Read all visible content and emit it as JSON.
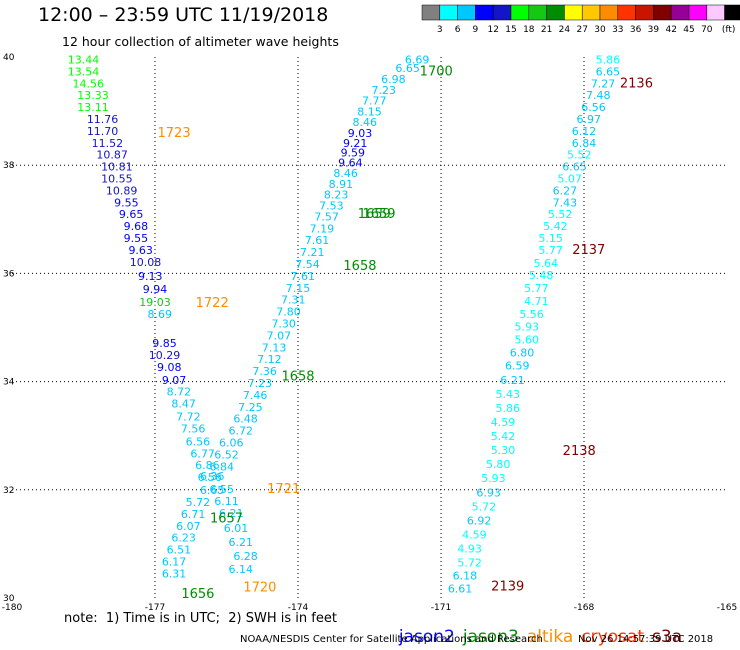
{
  "title": "12:00 – 23:59 UTC 11/19/2018",
  "subtitle": "12 hour collection of altimeter wave heights",
  "colorbar": {
    "ticks": [
      "3",
      "6",
      "9",
      "12",
      "15",
      "18",
      "21",
      "24",
      "27",
      "30",
      "33",
      "36",
      "39",
      "42",
      "45",
      "70"
    ],
    "unit": "(ft)",
    "colors": [
      "#808080",
      "#00ffff",
      "#00c8ff",
      "#0000ff",
      "#1414c8",
      "#00ff00",
      "#14c814",
      "#008c00",
      "#ffff00",
      "#ffc800",
      "#ff8c00",
      "#ff3200",
      "#c81400",
      "#800000",
      "#960096",
      "#ff00ff",
      "#ffc8ff",
      "#000000"
    ]
  },
  "note": "note:  1) Time is in UTC;  2) SWH is in feet",
  "satellites": [
    {
      "name": "jason2",
      "color": "#0000ff"
    },
    {
      "name": "jason3",
      "color": "#008c00"
    },
    {
      "name": "altika",
      "color": "#ff8c00"
    },
    {
      "name": "cryosat",
      "color": "#ff3200"
    },
    {
      "name": "s3a",
      "color": "#800000"
    }
  ],
  "credit": "NOAA/NESDIS Center for Satellite Applications and Research",
  "stamp": "Nov 26 14:57:39 UTC 2018",
  "chart_data": {
    "type": "scatter",
    "title": "12:00 – 23:59 UTC 11/19/2018",
    "xlabel": "",
    "ylabel": "",
    "xlim": [
      -180,
      -165
    ],
    "ylim": [
      30,
      40
    ],
    "x_ticks": [
      "-180",
      "-177",
      "-174",
      "-171",
      "-168",
      "-165"
    ],
    "y_ticks": [
      "30",
      "32",
      "34",
      "36",
      "38",
      "40"
    ],
    "grid": true,
    "colors": {
      "c3": "#00ffff",
      "c6": "#00c8ff",
      "c9": "#0000ff",
      "c12": "#1414c8",
      "c15": "#00ff00",
      "c18": "#14c814",
      "tj3": "#008c00",
      "tal": "#ff8c00",
      "ts3": "#800000"
    },
    "points": [
      {
        "x": -178.5,
        "y": 39.88,
        "label": "13.44",
        "c": "c15"
      },
      {
        "x": -178.5,
        "y": 39.66,
        "label": "13.54",
        "c": "c15"
      },
      {
        "x": -178.4,
        "y": 39.44,
        "label": "14.56",
        "c": "c15"
      },
      {
        "x": -178.3,
        "y": 39.22,
        "label": "13.33",
        "c": "c15"
      },
      {
        "x": -178.3,
        "y": 39.0,
        "label": "13.11",
        "c": "c15"
      },
      {
        "x": -178.1,
        "y": 38.78,
        "label": "11.76",
        "c": "c12"
      },
      {
        "x": -178.1,
        "y": 38.56,
        "label": "11.70",
        "c": "c12"
      },
      {
        "x": -178.0,
        "y": 38.34,
        "label": "11.52",
        "c": "c12"
      },
      {
        "x": -177.9,
        "y": 38.12,
        "label": "10.87",
        "c": "c12"
      },
      {
        "x": -177.8,
        "y": 37.9,
        "label": "10.81",
        "c": "c12"
      },
      {
        "x": -177.8,
        "y": 37.68,
        "label": "10.55",
        "c": "c12"
      },
      {
        "x": -177.7,
        "y": 37.46,
        "label": "10.89",
        "c": "c12"
      },
      {
        "x": -177.6,
        "y": 37.24,
        "label": "9.55",
        "c": "c9"
      },
      {
        "x": -177.5,
        "y": 37.02,
        "label": "9.65",
        "c": "c9"
      },
      {
        "x": -177.4,
        "y": 36.8,
        "label": "9.68",
        "c": "c9"
      },
      {
        "x": -177.4,
        "y": 36.58,
        "label": "9.55",
        "c": "c9"
      },
      {
        "x": -177.3,
        "y": 36.36,
        "label": "9.63",
        "c": "c9"
      },
      {
        "x": -177.2,
        "y": 36.14,
        "label": "10.08",
        "c": "c12"
      },
      {
        "x": -177.1,
        "y": 35.88,
        "label": "9.13",
        "c": "c9"
      },
      {
        "x": -177.0,
        "y": 35.64,
        "label": "9.94",
        "c": "c9"
      },
      {
        "x": -177.0,
        "y": 35.4,
        "label": "19.03",
        "c": "c18"
      },
      {
        "x": -176.9,
        "y": 35.18,
        "label": "8.69",
        "c": "c6"
      },
      {
        "x": -176.8,
        "y": 34.64,
        "label": "9.85",
        "c": "c9"
      },
      {
        "x": -176.8,
        "y": 34.42,
        "label": "10.29",
        "c": "c12"
      },
      {
        "x": -176.7,
        "y": 34.2,
        "label": "9.08",
        "c": "c9"
      },
      {
        "x": -176.6,
        "y": 33.96,
        "label": "9.07",
        "c": "c9"
      },
      {
        "x": -176.5,
        "y": 33.74,
        "label": "8.72",
        "c": "c6"
      },
      {
        "x": -176.4,
        "y": 33.52,
        "label": "8.47",
        "c": "c6"
      },
      {
        "x": -176.3,
        "y": 33.28,
        "label": "7.72",
        "c": "c6"
      },
      {
        "x": -176.2,
        "y": 33.06,
        "label": "7.56",
        "c": "c6"
      },
      {
        "x": -176.1,
        "y": 32.82,
        "label": "6.56",
        "c": "c6"
      },
      {
        "x": -176.0,
        "y": 32.6,
        "label": "6.77",
        "c": "c6"
      },
      {
        "x": -175.9,
        "y": 32.38,
        "label": "6.86",
        "c": "c6"
      },
      {
        "x": -175.85,
        "y": 32.16,
        "label": "6.56",
        "c": "c6"
      },
      {
        "x": -175.8,
        "y": 31.92,
        "label": "6.65",
        "c": "c6"
      },
      {
        "x": -176.1,
        "y": 31.7,
        "label": "5.72",
        "c": "c6"
      },
      {
        "x": -176.2,
        "y": 31.48,
        "label": "6.71",
        "c": "c6"
      },
      {
        "x": -176.3,
        "y": 31.26,
        "label": "6.07",
        "c": "c6"
      },
      {
        "x": -176.4,
        "y": 31.04,
        "label": "6.23",
        "c": "c6"
      },
      {
        "x": -176.5,
        "y": 30.82,
        "label": "6.51",
        "c": "c6"
      },
      {
        "x": -176.6,
        "y": 30.6,
        "label": "6.17",
        "c": "c6"
      },
      {
        "x": -176.6,
        "y": 30.38,
        "label": "6.31",
        "c": "c6"
      },
      {
        "x": -175.8,
        "y": 32.18,
        "label": "6.36",
        "c": "c6"
      },
      {
        "x": -175.6,
        "y": 31.94,
        "label": "6.55",
        "c": "c6"
      },
      {
        "x": -175.5,
        "y": 31.72,
        "label": "6.11",
        "c": "c6"
      },
      {
        "x": -175.4,
        "y": 31.5,
        "label": "6.21",
        "c": "c6"
      },
      {
        "x": -175.3,
        "y": 31.22,
        "label": "6.01",
        "c": "c6"
      },
      {
        "x": -175.2,
        "y": 30.96,
        "label": "6.21",
        "c": "c6"
      },
      {
        "x": -175.1,
        "y": 30.7,
        "label": "6.28",
        "c": "c6"
      },
      {
        "x": -175.2,
        "y": 30.46,
        "label": "6.14",
        "c": "c6"
      },
      {
        "x": -175.6,
        "y": 32.36,
        "label": "6.84",
        "c": "c6"
      },
      {
        "x": -175.5,
        "y": 32.58,
        "label": "6.52",
        "c": "c6"
      },
      {
        "x": -175.4,
        "y": 32.8,
        "label": "6.06",
        "c": "c6"
      },
      {
        "x": -175.2,
        "y": 33.02,
        "label": "6.72",
        "c": "c6"
      },
      {
        "x": -175.1,
        "y": 33.24,
        "label": "6.48",
        "c": "c6"
      },
      {
        "x": -175.0,
        "y": 33.46,
        "label": "7.25",
        "c": "c6"
      },
      {
        "x": -174.9,
        "y": 33.68,
        "label": "7.46",
        "c": "c6"
      },
      {
        "x": -174.8,
        "y": 33.9,
        "label": "7.23",
        "c": "c6"
      },
      {
        "x": -174.7,
        "y": 34.12,
        "label": "7.36",
        "c": "c6"
      },
      {
        "x": -174.6,
        "y": 34.34,
        "label": "7.12",
        "c": "c6"
      },
      {
        "x": -174.5,
        "y": 34.56,
        "label": "7.13",
        "c": "c6"
      },
      {
        "x": -174.4,
        "y": 34.78,
        "label": "7.07",
        "c": "c6"
      },
      {
        "x": -174.3,
        "y": 35.0,
        "label": "7.30",
        "c": "c6"
      },
      {
        "x": -174.2,
        "y": 35.22,
        "label": "7.80",
        "c": "c6"
      },
      {
        "x": -174.1,
        "y": 35.44,
        "label": "7.31",
        "c": "c6"
      },
      {
        "x": -174.0,
        "y": 35.66,
        "label": "7.15",
        "c": "c6"
      },
      {
        "x": -173.9,
        "y": 35.88,
        "label": "7.61",
        "c": "c6"
      },
      {
        "x": -173.8,
        "y": 36.1,
        "label": "7.54",
        "c": "c6"
      },
      {
        "x": -173.7,
        "y": 36.32,
        "label": "7.21",
        "c": "c6"
      },
      {
        "x": -173.6,
        "y": 36.54,
        "label": "7.61",
        "c": "c6"
      },
      {
        "x": -173.5,
        "y": 36.76,
        "label": "7.19",
        "c": "c6"
      },
      {
        "x": -173.4,
        "y": 36.98,
        "label": "7.57",
        "c": "c6"
      },
      {
        "x": -173.3,
        "y": 37.18,
        "label": "7.53",
        "c": "c6"
      },
      {
        "x": -173.2,
        "y": 37.38,
        "label": "8.23",
        "c": "c6"
      },
      {
        "x": -173.1,
        "y": 37.58,
        "label": "8.91",
        "c": "c6"
      },
      {
        "x": -173.0,
        "y": 37.78,
        "label": "8.46",
        "c": "c6"
      },
      {
        "x": -172.9,
        "y": 37.98,
        "label": "9.64",
        "c": "c9"
      },
      {
        "x": -172.85,
        "y": 38.16,
        "label": "9.59",
        "c": "c9"
      },
      {
        "x": -172.8,
        "y": 38.34,
        "label": "9.21",
        "c": "c9"
      },
      {
        "x": -172.7,
        "y": 38.52,
        "label": "9.03",
        "c": "c9"
      },
      {
        "x": -172.6,
        "y": 38.72,
        "label": "8.46",
        "c": "c6"
      },
      {
        "x": -172.5,
        "y": 38.92,
        "label": "8.15",
        "c": "c6"
      },
      {
        "x": -172.4,
        "y": 39.12,
        "label": "7.77",
        "c": "c6"
      },
      {
        "x": -172.2,
        "y": 39.32,
        "label": "7.23",
        "c": "c6"
      },
      {
        "x": -172.0,
        "y": 39.52,
        "label": "6.98",
        "c": "c6"
      },
      {
        "x": -171.7,
        "y": 39.72,
        "label": "6.65",
        "c": "c6"
      },
      {
        "x": -171.5,
        "y": 39.88,
        "label": "6.69",
        "c": "c6"
      },
      {
        "x": -167.5,
        "y": 39.88,
        "label": "5.86",
        "c": "c3"
      },
      {
        "x": -167.5,
        "y": 39.66,
        "label": "6.65",
        "c": "c6"
      },
      {
        "x": -167.6,
        "y": 39.44,
        "label": "7.27",
        "c": "c6"
      },
      {
        "x": -167.7,
        "y": 39.22,
        "label": "7.48",
        "c": "c6"
      },
      {
        "x": -167.8,
        "y": 39.0,
        "label": "6.56",
        "c": "c6"
      },
      {
        "x": -167.9,
        "y": 38.78,
        "label": "6.97",
        "c": "c6"
      },
      {
        "x": -168.0,
        "y": 38.56,
        "label": "6.12",
        "c": "c6"
      },
      {
        "x": -168.0,
        "y": 38.34,
        "label": "6.84",
        "c": "c6"
      },
      {
        "x": -168.1,
        "y": 38.12,
        "label": "5.52",
        "c": "c3"
      },
      {
        "x": -168.2,
        "y": 37.9,
        "label": "6.65",
        "c": "c6"
      },
      {
        "x": -168.3,
        "y": 37.68,
        "label": "5.07",
        "c": "c3"
      },
      {
        "x": -168.4,
        "y": 37.46,
        "label": "6.27",
        "c": "c6"
      },
      {
        "x": -168.4,
        "y": 37.24,
        "label": "7.43",
        "c": "c6"
      },
      {
        "x": -168.5,
        "y": 37.02,
        "label": "5.52",
        "c": "c3"
      },
      {
        "x": -168.6,
        "y": 36.8,
        "label": "5.42",
        "c": "c3"
      },
      {
        "x": -168.7,
        "y": 36.58,
        "label": "5.15",
        "c": "c3"
      },
      {
        "x": -168.7,
        "y": 36.36,
        "label": "5.77",
        "c": "c3"
      },
      {
        "x": -168.8,
        "y": 36.12,
        "label": "5.64",
        "c": "c3"
      },
      {
        "x": -168.9,
        "y": 35.9,
        "label": "5.48",
        "c": "c3"
      },
      {
        "x": -169.0,
        "y": 35.66,
        "label": "5.77",
        "c": "c3"
      },
      {
        "x": -169.0,
        "y": 35.42,
        "label": "4.71",
        "c": "c3"
      },
      {
        "x": -169.1,
        "y": 35.18,
        "label": "5.56",
        "c": "c3"
      },
      {
        "x": -169.2,
        "y": 34.94,
        "label": "5.93",
        "c": "c3"
      },
      {
        "x": -169.2,
        "y": 34.7,
        "label": "5.60",
        "c": "c3"
      },
      {
        "x": -169.3,
        "y": 34.46,
        "label": "6.80",
        "c": "c6"
      },
      {
        "x": -169.4,
        "y": 34.22,
        "label": "6.59",
        "c": "c6"
      },
      {
        "x": -169.5,
        "y": 33.96,
        "label": "6.21",
        "c": "c6"
      },
      {
        "x": -169.6,
        "y": 33.7,
        "label": "5.43",
        "c": "c3"
      },
      {
        "x": -169.6,
        "y": 33.44,
        "label": "5.86",
        "c": "c3"
      },
      {
        "x": -169.7,
        "y": 33.18,
        "label": "4.59",
        "c": "c3"
      },
      {
        "x": -169.7,
        "y": 32.92,
        "label": "5.42",
        "c": "c3"
      },
      {
        "x": -169.7,
        "y": 32.66,
        "label": "5.30",
        "c": "c3"
      },
      {
        "x": -169.8,
        "y": 32.4,
        "label": "5.80",
        "c": "c3"
      },
      {
        "x": -169.9,
        "y": 32.14,
        "label": "5.93",
        "c": "c3"
      },
      {
        "x": -170.0,
        "y": 31.88,
        "label": "6.93",
        "c": "c6"
      },
      {
        "x": -170.1,
        "y": 31.62,
        "label": "5.72",
        "c": "c3"
      },
      {
        "x": -170.2,
        "y": 31.36,
        "label": "6.92",
        "c": "c6"
      },
      {
        "x": -170.3,
        "y": 31.1,
        "label": "4.59",
        "c": "c3"
      },
      {
        "x": -170.4,
        "y": 30.84,
        "label": "4.93",
        "c": "c3"
      },
      {
        "x": -170.4,
        "y": 30.58,
        "label": "5.72",
        "c": "c3"
      },
      {
        "x": -170.5,
        "y": 30.34,
        "label": "6.18",
        "c": "c6"
      },
      {
        "x": -170.6,
        "y": 30.1,
        "label": "6.61",
        "c": "c6"
      }
    ],
    "time_labels": [
      {
        "x": -176.6,
        "y": 38.52,
        "label": "1723",
        "c": "tal"
      },
      {
        "x": -175.8,
        "y": 35.38,
        "label": "1722",
        "c": "tal"
      },
      {
        "x": -174.3,
        "y": 31.94,
        "label": "1721",
        "c": "tal"
      },
      {
        "x": -174.8,
        "y": 30.12,
        "label": "1720",
        "c": "tal"
      },
      {
        "x": -171.1,
        "y": 39.66,
        "label": "1700",
        "c": "tj3"
      },
      {
        "x": -172.4,
        "y": 37.02,
        "label": "1659",
        "c": "tj3"
      },
      {
        "x": -172.3,
        "y": 37.02,
        "label": "1659",
        "c": "tj3"
      },
      {
        "x": -172.7,
        "y": 36.06,
        "label": "1658",
        "c": "tj3"
      },
      {
        "x": -174.0,
        "y": 34.02,
        "label": "1658",
        "c": "tj3"
      },
      {
        "x": -175.5,
        "y": 31.4,
        "label": "1657",
        "c": "tj3"
      },
      {
        "x": -176.1,
        "y": 30.0,
        "label": "1656",
        "c": "tj3"
      },
      {
        "x": -166.9,
        "y": 39.44,
        "label": "2136",
        "c": "ts3"
      },
      {
        "x": -167.9,
        "y": 36.36,
        "label": "2137",
        "c": "ts3"
      },
      {
        "x": -168.1,
        "y": 32.64,
        "label": "2138",
        "c": "ts3"
      },
      {
        "x": -169.6,
        "y": 30.14,
        "label": "2139",
        "c": "ts3"
      }
    ]
  }
}
